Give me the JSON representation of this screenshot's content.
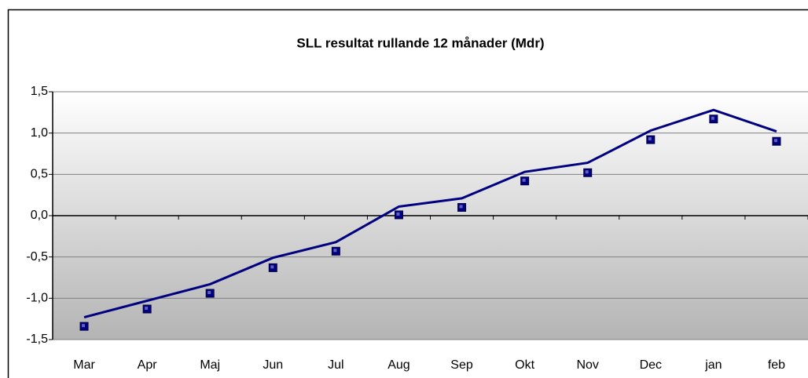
{
  "chart_data": {
    "type": "line",
    "title": "SLL resultat rullande 12 månader (Mdr)",
    "categories": [
      "Mar",
      "Apr",
      "Maj",
      "Jun",
      "Jul",
      "Aug",
      "Sep",
      "Okt",
      "Nov",
      "Dec",
      "jan",
      "feb"
    ],
    "series": [
      {
        "color": "#000080",
        "style": "line",
        "values": [
          -1.23,
          -1.03,
          -0.83,
          -0.51,
          -0.32,
          0.11,
          0.21,
          0.53,
          0.64,
          1.03,
          1.28,
          1.02
        ]
      },
      {
        "color": "#000080",
        "style": "marker",
        "values": [
          -1.34,
          -1.13,
          -0.94,
          -0.63,
          -0.43,
          0.01,
          0.1,
          0.42,
          0.52,
          0.92,
          1.17,
          0.9
        ]
      }
    ],
    "ylim": [
      -1.5,
      1.5
    ],
    "yticks": [
      {
        "value": -1.5,
        "label": "-1,5"
      },
      {
        "value": -1,
        "label": "-1,0"
      },
      {
        "value": -0.5,
        "label": "-0,5"
      },
      {
        "value": 0,
        "label": "0,0"
      },
      {
        "value": 0.5,
        "label": "0,5"
      },
      {
        "value": 1,
        "label": "1,0"
      },
      {
        "value": 1.5,
        "label": "1,5"
      }
    ],
    "grid": true
  }
}
